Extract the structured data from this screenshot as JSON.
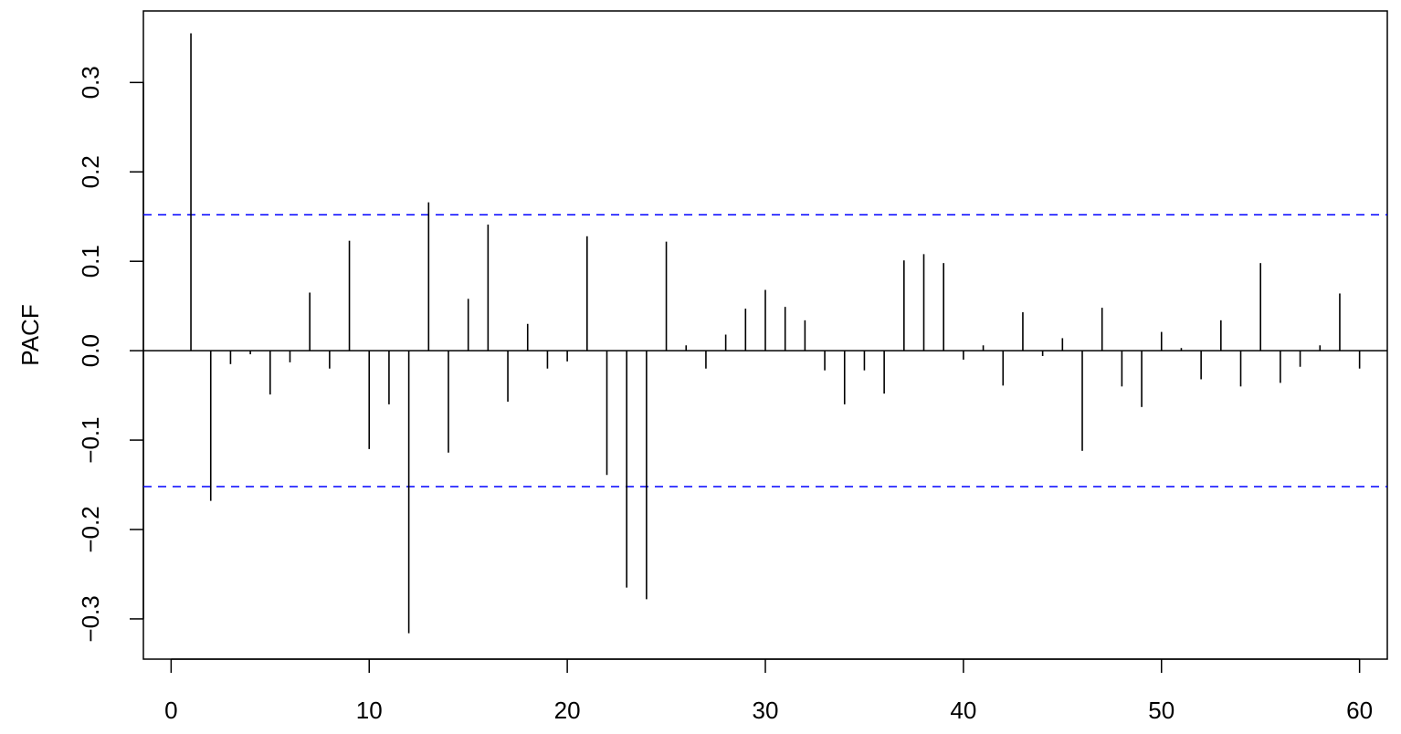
{
  "chart_data": {
    "type": "bar",
    "subtype": "pacf-spikes",
    "title": "",
    "xlabel": "",
    "ylabel": "PACF",
    "xlim": [
      -1.4,
      61.4
    ],
    "ylim": [
      -0.345,
      0.38
    ],
    "x_ticks": [
      0,
      10,
      20,
      30,
      40,
      50,
      60
    ],
    "x_tick_labels": [
      "0",
      "10",
      "20",
      "30",
      "40",
      "50",
      "60"
    ],
    "y_ticks": [
      -0.3,
      -0.2,
      -0.1,
      0.0,
      0.1,
      0.2,
      0.3
    ],
    "y_tick_labels": [
      "−0.3",
      "−0.2",
      "−0.1",
      "0.0",
      "0.1",
      "0.2",
      "0.3"
    ],
    "confidence_bounds": [
      0.152,
      -0.152
    ],
    "confidence_color": "#0000FF",
    "series": [
      {
        "lags": [
          1,
          2,
          3,
          4,
          5,
          6,
          7,
          8,
          9,
          10,
          11,
          12,
          13,
          14,
          15,
          16,
          17,
          18,
          19,
          20,
          21,
          22,
          23,
          24,
          25,
          26,
          27,
          28,
          29,
          30,
          31,
          32,
          33,
          34,
          35,
          36,
          37,
          38,
          39,
          40,
          41,
          42,
          43,
          44,
          45,
          46,
          47,
          48,
          49,
          50,
          51,
          52,
          53,
          54,
          55,
          56,
          57,
          58,
          59,
          60
        ],
        "values": [
          0.355,
          -0.168,
          -0.015,
          -0.004,
          -0.049,
          -0.013,
          0.065,
          -0.02,
          0.123,
          -0.11,
          -0.06,
          -0.316,
          0.166,
          -0.114,
          0.058,
          0.141,
          -0.057,
          0.03,
          -0.02,
          -0.012,
          0.128,
          -0.139,
          -0.265,
          -0.278,
          0.122,
          0.006,
          -0.02,
          0.018,
          0.047,
          0.068,
          0.049,
          0.034,
          -0.022,
          -0.06,
          -0.022,
          -0.048,
          0.101,
          0.108,
          0.098,
          -0.01,
          0.006,
          -0.039,
          0.043,
          -0.006,
          0.014,
          -0.112,
          0.048,
          -0.04,
          -0.063,
          0.021,
          0.003,
          -0.032,
          0.034,
          -0.04,
          0.098,
          -0.036,
          -0.018,
          0.006,
          0.064,
          -0.02
        ]
      }
    ]
  }
}
